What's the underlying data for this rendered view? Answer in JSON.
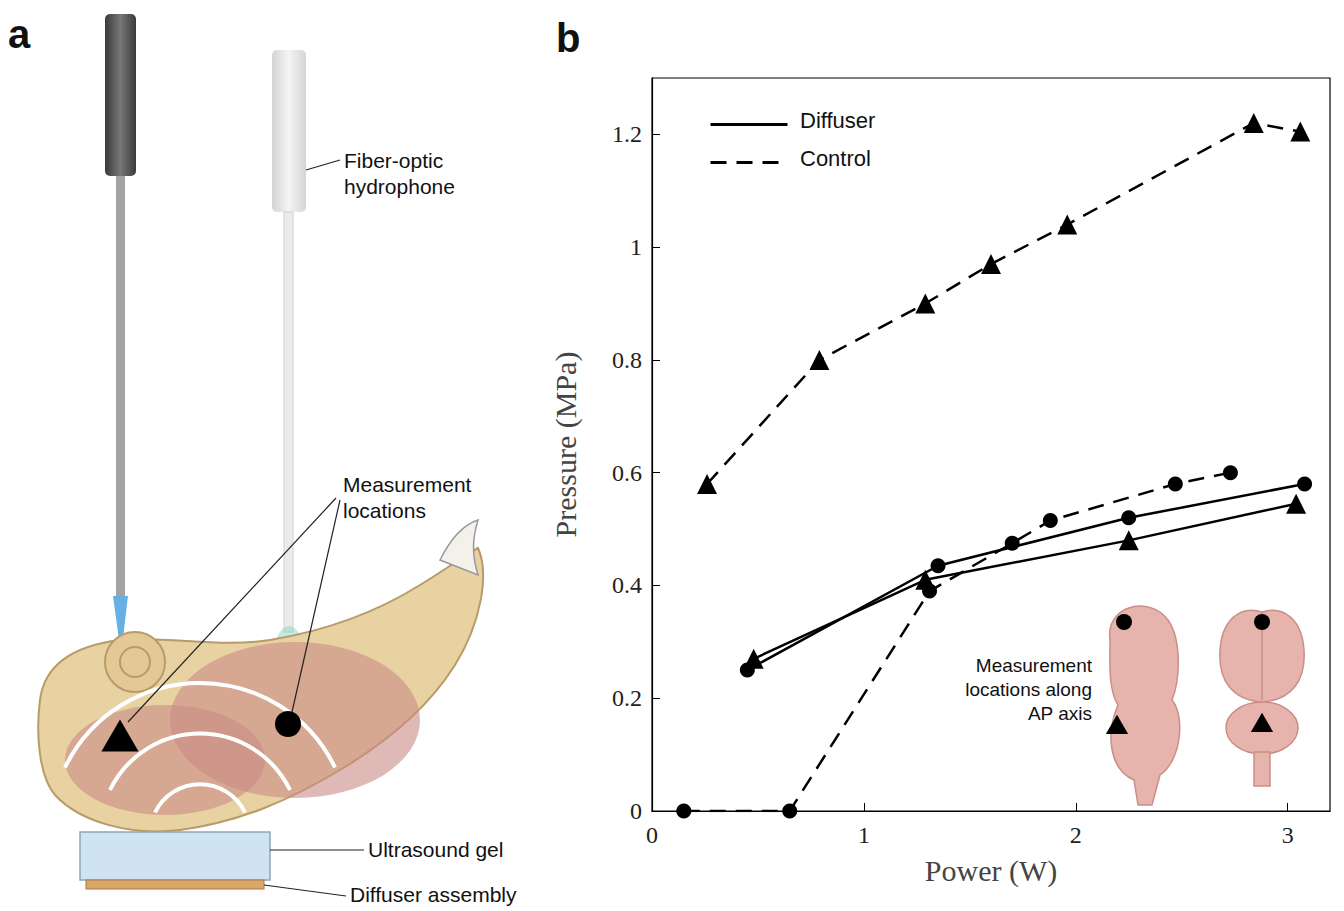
{
  "panel_labels": [
    "a",
    "b"
  ],
  "diagram": {
    "labels": {
      "hydrophone": "Fiber-optic hydrophone",
      "measurement": "Measurement locations",
      "gel": "Ultrasound gel",
      "diffuser": "Diffuser assembly"
    },
    "markers": [
      "triangle",
      "circle"
    ]
  },
  "chart_data": {
    "type": "line",
    "x_label": "Power (W)",
    "y_label": "Pressure (MPa)",
    "xlim": [
      0,
      3.2
    ],
    "xticks": [
      0,
      1,
      2,
      3
    ],
    "ylim": [
      0,
      1.3
    ],
    "yticks": [
      0,
      0.2,
      0.4,
      0.6,
      0.8,
      1,
      1.2
    ],
    "grid": false,
    "legend": "upper left",
    "series": [
      {
        "name": "Control",
        "color": "#000000",
        "marker": "triangle",
        "line_style": "dashed",
        "x": [
          0.26,
          0.79,
          1.29,
          1.6,
          1.96,
          2.84,
          3.06
        ],
        "values": [
          0.58,
          0.8,
          0.9,
          0.97,
          1.04,
          1.22,
          1.205
        ]
      },
      {
        "name": "Control",
        "color": "#000000",
        "marker": "circle",
        "line_style": "dashed",
        "x": [
          0.15,
          0.65,
          1.31,
          1.7,
          1.88,
          2.47,
          2.73
        ],
        "values": [
          0,
          0,
          0.39,
          0.475,
          0.515,
          0.58,
          0.6
        ]
      },
      {
        "name": "Diffuser",
        "color": "#000000",
        "marker": "triangle",
        "line_style": "solid",
        "x": [
          0.48,
          1.29,
          2.25,
          3.04
        ],
        "values": [
          0.27,
          0.41,
          0.48,
          0.545
        ]
      },
      {
        "name": "Diffuser",
        "color": "#000000",
        "marker": "circle",
        "line_style": "solid",
        "x": [
          0.45,
          1.35,
          2.25,
          3.08
        ],
        "values": [
          0.25,
          0.435,
          0.52,
          0.58
        ]
      }
    ],
    "inset": {
      "text": "Measurement locations along AP axis",
      "markers": [
        "circle",
        "triangle"
      ]
    }
  }
}
